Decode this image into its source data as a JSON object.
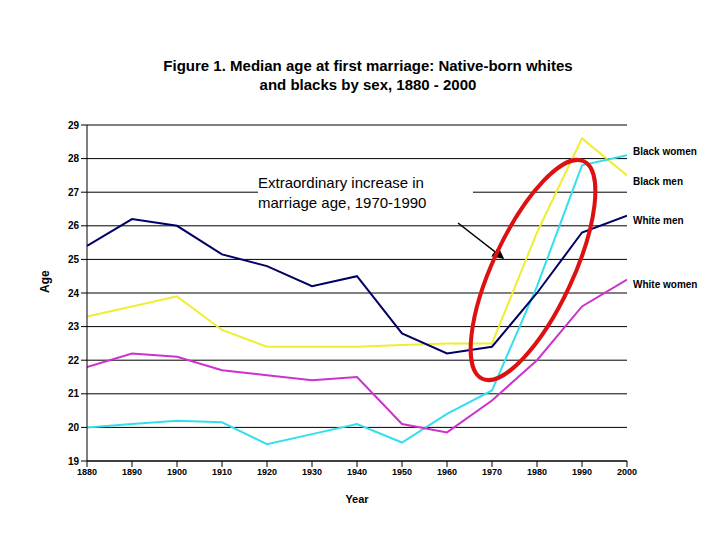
{
  "chart_data": {
    "type": "line",
    "title": "Figure 1. Median age at first marriage: Native-born whites and blacks by sex, 1880 - 2000",
    "x_label": "Year",
    "y_label": "Age",
    "annotation": "Extraordinary increase in marriage age, 1970-1990",
    "x": [
      1880,
      1890,
      1900,
      1910,
      1920,
      1930,
      1940,
      1950,
      1960,
      1970,
      1980,
      1990,
      2000
    ],
    "xlim": [
      1880,
      2000
    ],
    "xticks": [
      1880,
      1890,
      1900,
      1910,
      1920,
      1930,
      1940,
      1950,
      1960,
      1970,
      1980,
      1990,
      2000
    ],
    "ylim": [
      19,
      29
    ],
    "yticks": [
      19,
      20,
      21,
      22,
      23,
      24,
      25,
      26,
      27,
      28,
      29
    ],
    "grid": true,
    "series": [
      {
        "name": "Black men",
        "color": "#eeee33",
        "values": [
          23.3,
          23.6,
          23.9,
          22.9,
          22.4,
          22.4,
          22.4,
          22.45,
          22.5,
          22.5,
          25.8,
          28.6,
          27.5
        ]
      },
      {
        "name": "Black women",
        "color": "#33dfee",
        "values": [
          20.0,
          20.1,
          20.2,
          20.15,
          19.5,
          19.8,
          20.1,
          19.55,
          20.4,
          21.1,
          24.2,
          27.8,
          28.1
        ]
      },
      {
        "name": "White men",
        "color": "#000066",
        "values": [
          25.4,
          26.2,
          26.0,
          25.15,
          24.8,
          24.2,
          24.5,
          22.8,
          22.2,
          22.4,
          24.0,
          25.8,
          26.3
        ]
      },
      {
        "name": "White women",
        "color": "#cc33cc",
        "values": [
          21.8,
          22.2,
          22.1,
          21.7,
          21.55,
          21.4,
          21.5,
          20.1,
          19.85,
          20.8,
          22.0,
          23.6,
          24.4
        ]
      }
    ]
  }
}
